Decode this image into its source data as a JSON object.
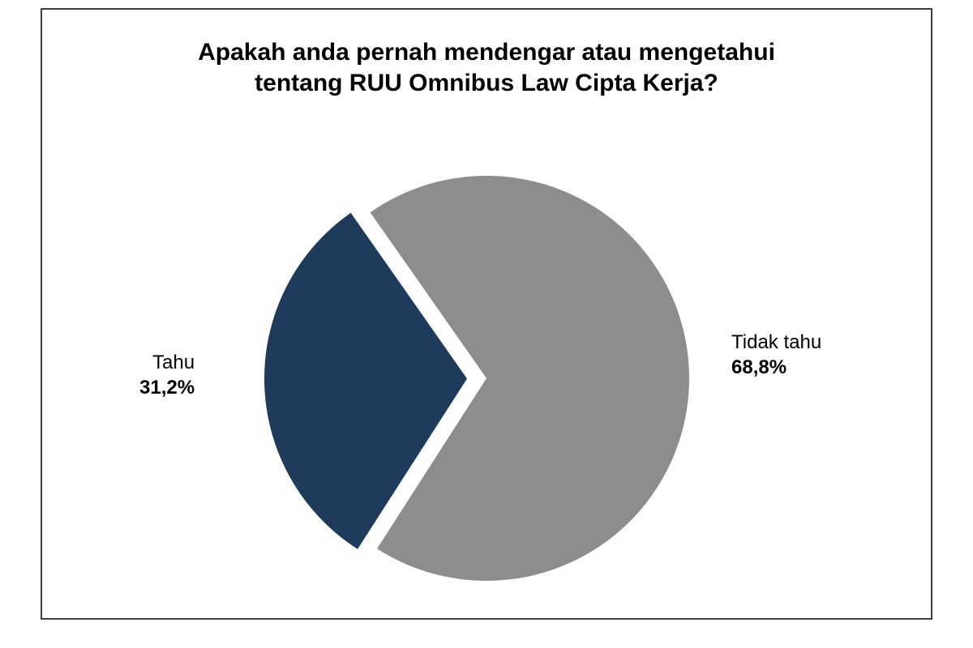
{
  "chart": {
    "type": "pie",
    "title_line1": "Apakah anda pernah mendengar atau mengetahui",
    "title_line2": "tentang RUU Omnibus Law Cipta Kerja?",
    "title_fontsize": 30,
    "title_color": "#000000",
    "background_color": "#ffffff",
    "frame_border_color": "#404040",
    "pie_radius": 250,
    "slices": [
      {
        "label": "Tahu",
        "value": 31.2,
        "display_pct": "31,2%",
        "color": "#1f3b5c",
        "pull_out": 24
      },
      {
        "label": "Tidak tahu",
        "value": 68.8,
        "display_pct": "68,8%",
        "color": "#8d8d8d",
        "pull_out": 0
      }
    ],
    "start_angle_deg": 125,
    "label_fontsize": 24,
    "labels": {
      "left": {
        "name": "Tahu",
        "pct": "31,2%"
      },
      "right": {
        "name": "Tidak tahu",
        "pct": "68,8%"
      }
    }
  }
}
